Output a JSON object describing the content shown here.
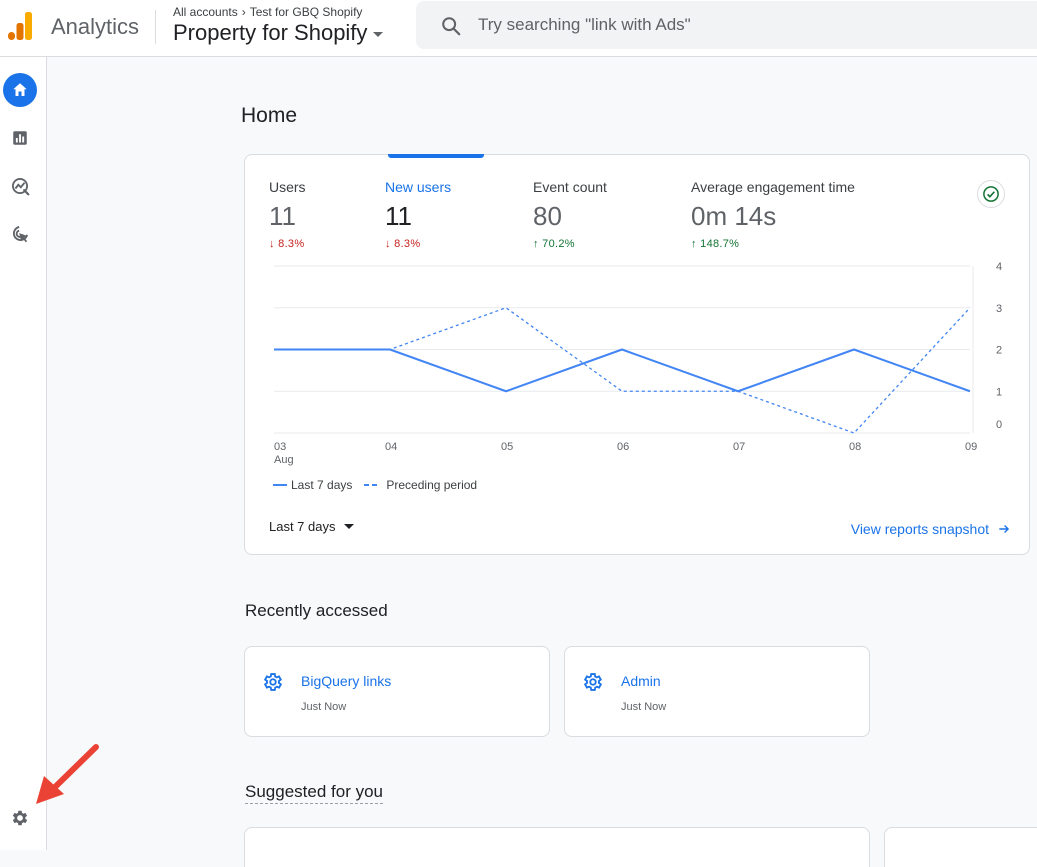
{
  "header": {
    "product_name": "Analytics",
    "breadcrumb": [
      "All accounts",
      "Test for GBQ Shopify"
    ],
    "property_name": "Property for Shopify",
    "search_placeholder": "Try searching \"link with Ads\""
  },
  "page": {
    "title": "Home"
  },
  "summary_card": {
    "metrics": [
      {
        "label": "Users",
        "value": "11",
        "delta": "8.3%",
        "direction": "down"
      },
      {
        "label": "New users",
        "value": "11",
        "delta": "8.3%",
        "direction": "down"
      },
      {
        "label": "Event count",
        "value": "80",
        "delta": "70.2%",
        "direction": "up"
      },
      {
        "label": "Average engagement time",
        "value": "0m 14s",
        "delta": "148.7%",
        "direction": "up"
      }
    ],
    "active_metric": "New users",
    "legend": {
      "current": "Last 7 days",
      "previous": "Preceding period"
    },
    "date_range": "Last 7 days",
    "snapshot_link": "View reports snapshot"
  },
  "chart_data": {
    "type": "line",
    "x": [
      "03 Aug",
      "04",
      "05",
      "06",
      "07",
      "08",
      "09"
    ],
    "series": [
      {
        "name": "Last 7 days",
        "values": [
          2,
          2,
          1,
          2,
          1,
          2,
          1
        ],
        "style": "solid",
        "color": "#4285f4"
      },
      {
        "name": "Preceding period",
        "values": [
          2,
          2,
          3,
          1,
          1,
          0,
          3
        ],
        "style": "dashed",
        "color": "#4285f4"
      }
    ],
    "yticks": [
      "4",
      "3",
      "2",
      "1",
      "0"
    ],
    "ylim": [
      0,
      4
    ],
    "axis_position": "right",
    "grid": true
  },
  "recently_accessed": {
    "title": "Recently accessed",
    "items": [
      {
        "label": "BigQuery links",
        "subtitle": "Just Now",
        "icon": "gear-icon"
      },
      {
        "label": "Admin",
        "subtitle": "Just Now",
        "icon": "gear-icon"
      }
    ]
  },
  "suggested": {
    "title": "Suggested for you"
  },
  "nav": {
    "items": [
      {
        "icon": "home-icon",
        "active": true
      },
      {
        "icon": "reports-icon",
        "active": false
      },
      {
        "icon": "explore-icon",
        "active": false
      },
      {
        "icon": "advertising-icon",
        "active": false
      }
    ],
    "settings_icon": "gear-icon"
  },
  "colors": {
    "accent": "#1a73e8",
    "down": "#c5221f",
    "up": "#137333",
    "series": "#4285f4"
  }
}
